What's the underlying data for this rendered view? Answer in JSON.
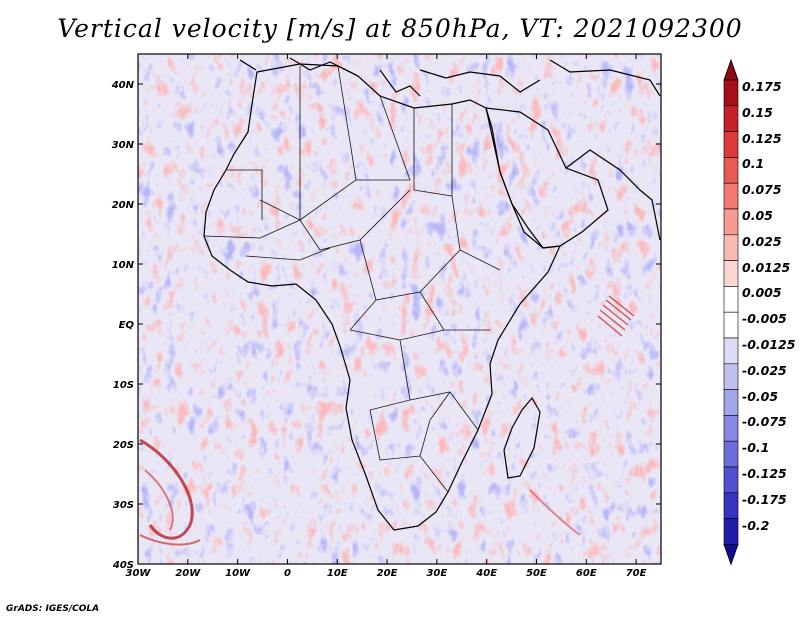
{
  "title": "Vertical velocity [m/s] at 850hPa, VT: 2021092300",
  "map": {
    "region": "Africa",
    "lon_range": [
      -30,
      75
    ],
    "lat_range": [
      -40,
      45
    ],
    "lat_labels": [
      {
        "lat": 40,
        "text": "40N"
      },
      {
        "lat": 30,
        "text": "30N"
      },
      {
        "lat": 20,
        "text": "20N"
      },
      {
        "lat": 10,
        "text": "10N"
      },
      {
        "lat": 0,
        "text": "EQ"
      },
      {
        "lat": -10,
        "text": "10S"
      },
      {
        "lat": -20,
        "text": "20S"
      },
      {
        "lat": -30,
        "text": "30S"
      },
      {
        "lat": -40,
        "text": "40S"
      }
    ],
    "lon_labels": [
      {
        "lon": -30,
        "text": "30W"
      },
      {
        "lon": -20,
        "text": "20W"
      },
      {
        "lon": -10,
        "text": "10W"
      },
      {
        "lon": 0,
        "text": "0"
      },
      {
        "lon": 10,
        "text": "10E"
      },
      {
        "lon": 20,
        "text": "20E"
      },
      {
        "lon": 30,
        "text": "30E"
      },
      {
        "lon": 40,
        "text": "40E"
      },
      {
        "lon": 50,
        "text": "50E"
      },
      {
        "lon": 60,
        "text": "60E"
      },
      {
        "lon": 70,
        "text": "70E"
      }
    ]
  },
  "colorbar": {
    "levels": [
      {
        "label": "0.175",
        "color": "#a50f15"
      },
      {
        "label": "0.15",
        "color": "#c8202a"
      },
      {
        "label": "0.125",
        "color": "#dc3a3a"
      },
      {
        "label": "0.1",
        "color": "#e85a55"
      },
      {
        "label": "0.075",
        "color": "#f27a72"
      },
      {
        "label": "0.05",
        "color": "#f79a92"
      },
      {
        "label": "0.025",
        "color": "#fbbab4"
      },
      {
        "label": "0.0125",
        "color": "#fdd6d2"
      },
      {
        "label": "0.005",
        "color": "#ffffff"
      },
      {
        "label": "-0.005",
        "color": "#ffffff"
      },
      {
        "label": "-0.0125",
        "color": "#dcdcf6"
      },
      {
        "label": "-0.025",
        "color": "#c0c0f0"
      },
      {
        "label": "-0.05",
        "color": "#a4a4ea"
      },
      {
        "label": "-0.075",
        "color": "#8888e2"
      },
      {
        "label": "-0.1",
        "color": "#6c6cda"
      },
      {
        "label": "-0.125",
        "color": "#5050d0"
      },
      {
        "label": "-0.175",
        "color": "#3434c0"
      },
      {
        "label": "-0.2",
        "color": "#1e1ea8"
      }
    ],
    "top_color": "#8a0a10",
    "bottom_color": "#140c96"
  },
  "credit": "GrADS: IGES/COLA"
}
